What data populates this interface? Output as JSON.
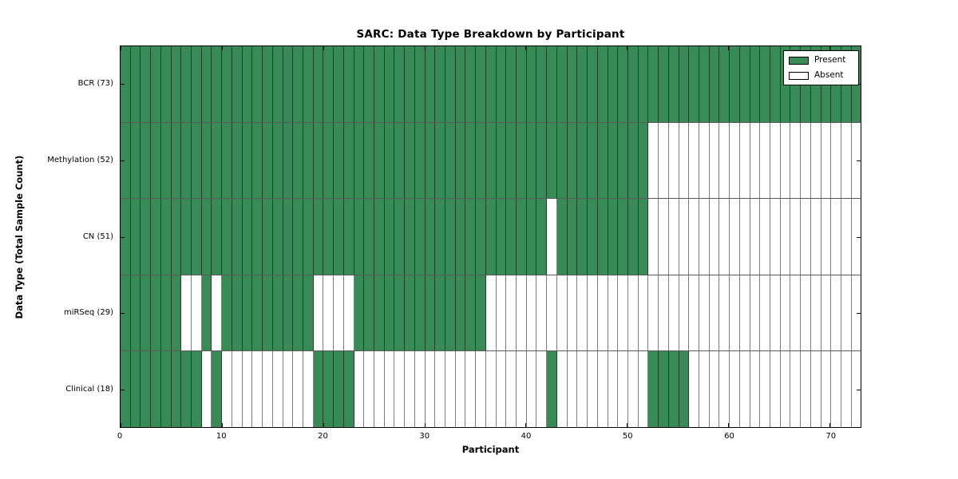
{
  "chart_data": {
    "type": "heatmap",
    "title": "SARC: Data Type Breakdown by Participant",
    "xlabel": "Participant",
    "ylabel": "Data Type (Total Sample Count)",
    "n_participants": 73,
    "xlim": [
      0,
      73
    ],
    "x_ticks": [
      0,
      10,
      20,
      30,
      40,
      50,
      60,
      70
    ],
    "grid": false,
    "legend_position": "upper right",
    "legend_entries": [
      {
        "label": "Present",
        "color": "#388a57"
      },
      {
        "label": "Absent",
        "color": "#ffffff"
      }
    ],
    "colors": {
      "present": "#388a57",
      "absent": "#ffffff"
    },
    "rows": [
      {
        "label": "BCR (73)",
        "data_type": "BCR",
        "total_samples": 73,
        "present_ranges": [
          [
            0,
            72
          ]
        ]
      },
      {
        "label": "Methylation (52)",
        "data_type": "Methylation",
        "total_samples": 52,
        "present_ranges": [
          [
            0,
            51
          ]
        ]
      },
      {
        "label": "CN (51)",
        "data_type": "CN",
        "total_samples": 51,
        "present_ranges": [
          [
            0,
            41
          ],
          [
            43,
            51
          ]
        ]
      },
      {
        "label": "miRSeq (29)",
        "data_type": "miRSeq",
        "total_samples": 29,
        "present_ranges": [
          [
            0,
            5
          ],
          [
            8,
            8
          ],
          [
            10,
            18
          ],
          [
            23,
            35
          ]
        ]
      },
      {
        "label": "Clinical (18)",
        "data_type": "Clinical",
        "total_samples": 18,
        "present_ranges": [
          [
            0,
            7
          ],
          [
            9,
            9
          ],
          [
            19,
            22
          ],
          [
            42,
            42
          ],
          [
            52,
            55
          ]
        ]
      }
    ]
  }
}
